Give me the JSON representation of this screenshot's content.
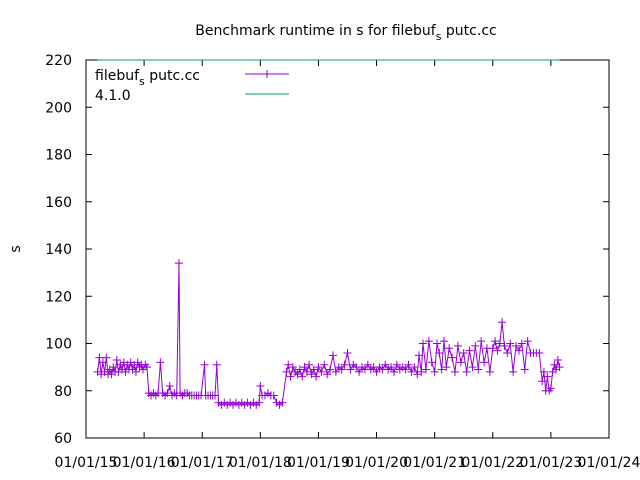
{
  "chart_data": {
    "type": "line",
    "title": {
      "prefix": "Benchmark runtime in s for filebuf",
      "sub": "s",
      "suffix": " putc.cc"
    },
    "xlabel": "",
    "ylabel": "s",
    "ylim": [
      60,
      220
    ],
    "xlim": [
      2015,
      2024
    ],
    "yticks": [
      "60",
      "80",
      "100",
      "120",
      "140",
      "160",
      "180",
      "200",
      "220"
    ],
    "xticks": [
      "01/01/15",
      "01/01/16",
      "01/01/17",
      "01/01/18",
      "01/01/19",
      "01/01/20",
      "01/01/21",
      "01/01/22",
      "01/01/23",
      "01/01/24"
    ],
    "legend_position": "top-left",
    "series": [
      {
        "name": {
          "prefix": "filebuf",
          "sub": "s",
          "suffix": " putc.cc"
        },
        "color": "#9400d3",
        "marker": "plus",
        "points": [
          [
            2015.2,
            88
          ],
          [
            2015.23,
            94
          ],
          [
            2015.26,
            87
          ],
          [
            2015.29,
            92
          ],
          [
            2015.32,
            88
          ],
          [
            2015.35,
            94
          ],
          [
            2015.38,
            87
          ],
          [
            2015.41,
            89
          ],
          [
            2015.44,
            87
          ],
          [
            2015.47,
            90
          ],
          [
            2015.5,
            88
          ],
          [
            2015.53,
            93
          ],
          [
            2015.56,
            88
          ],
          [
            2015.59,
            91
          ],
          [
            2015.62,
            89
          ],
          [
            2015.65,
            92
          ],
          [
            2015.68,
            88
          ],
          [
            2015.71,
            91
          ],
          [
            2015.74,
            89
          ],
          [
            2015.77,
            92
          ],
          [
            2015.8,
            89
          ],
          [
            2015.83,
            91
          ],
          [
            2015.86,
            88
          ],
          [
            2015.89,
            92
          ],
          [
            2015.92,
            90
          ],
          [
            2015.95,
            91
          ],
          [
            2015.98,
            89
          ],
          [
            2016.02,
            91
          ],
          [
            2016.05,
            90
          ],
          [
            2016.08,
            79
          ],
          [
            2016.12,
            78
          ],
          [
            2016.16,
            79
          ],
          [
            2016.2,
            78
          ],
          [
            2016.24,
            79
          ],
          [
            2016.28,
            92
          ],
          [
            2016.32,
            79
          ],
          [
            2016.36,
            78
          ],
          [
            2016.4,
            79
          ],
          [
            2016.44,
            82
          ],
          [
            2016.48,
            78
          ],
          [
            2016.52,
            79
          ],
          [
            2016.56,
            78
          ],
          [
            2016.6,
            134
          ],
          [
            2016.62,
            79
          ],
          [
            2016.66,
            78
          ],
          [
            2016.7,
            79
          ],
          [
            2016.74,
            79
          ],
          [
            2016.78,
            78
          ],
          [
            2016.82,
            78
          ],
          [
            2016.86,
            78
          ],
          [
            2016.9,
            78
          ],
          [
            2016.94,
            78
          ],
          [
            2016.98,
            78
          ],
          [
            2017.04,
            91
          ],
          [
            2017.06,
            78
          ],
          [
            2017.1,
            78
          ],
          [
            2017.14,
            78
          ],
          [
            2017.18,
            78
          ],
          [
            2017.22,
            78
          ],
          [
            2017.25,
            91
          ],
          [
            2017.28,
            75
          ],
          [
            2017.33,
            74
          ],
          [
            2017.38,
            75
          ],
          [
            2017.43,
            74
          ],
          [
            2017.48,
            75
          ],
          [
            2017.53,
            74
          ],
          [
            2017.58,
            75
          ],
          [
            2017.63,
            74
          ],
          [
            2017.68,
            75
          ],
          [
            2017.73,
            74
          ],
          [
            2017.78,
            75
          ],
          [
            2017.83,
            74
          ],
          [
            2017.88,
            75
          ],
          [
            2017.93,
            74
          ],
          [
            2017.98,
            75
          ],
          [
            2018.0,
            82
          ],
          [
            2018.03,
            78
          ],
          [
            2018.08,
            78
          ],
          [
            2018.13,
            79
          ],
          [
            2018.18,
            78
          ],
          [
            2018.23,
            78
          ],
          [
            2018.28,
            75
          ],
          [
            2018.33,
            74
          ],
          [
            2018.38,
            75
          ],
          [
            2018.45,
            88
          ],
          [
            2018.48,
            91
          ],
          [
            2018.52,
            86
          ],
          [
            2018.56,
            90
          ],
          [
            2018.6,
            88
          ],
          [
            2018.64,
            87
          ],
          [
            2018.68,
            89
          ],
          [
            2018.72,
            86
          ],
          [
            2018.76,
            90
          ],
          [
            2018.8,
            88
          ],
          [
            2018.84,
            91
          ],
          [
            2018.88,
            87
          ],
          [
            2018.92,
            89
          ],
          [
            2018.96,
            86
          ],
          [
            2019.0,
            90
          ],
          [
            2019.05,
            88
          ],
          [
            2019.1,
            91
          ],
          [
            2019.15,
            87
          ],
          [
            2019.2,
            89
          ],
          [
            2019.25,
            95
          ],
          [
            2019.3,
            88
          ],
          [
            2019.35,
            90
          ],
          [
            2019.4,
            89
          ],
          [
            2019.45,
            91
          ],
          [
            2019.5,
            96
          ],
          [
            2019.55,
            89
          ],
          [
            2019.6,
            91
          ],
          [
            2019.65,
            90
          ],
          [
            2019.7,
            88
          ],
          [
            2019.75,
            90
          ],
          [
            2019.8,
            89
          ],
          [
            2019.85,
            91
          ],
          [
            2019.9,
            89
          ],
          [
            2019.95,
            90
          ],
          [
            2020.0,
            88
          ],
          [
            2020.05,
            90
          ],
          [
            2020.1,
            89
          ],
          [
            2020.15,
            91
          ],
          [
            2020.2,
            89
          ],
          [
            2020.25,
            90
          ],
          [
            2020.3,
            88
          ],
          [
            2020.35,
            91
          ],
          [
            2020.4,
            89
          ],
          [
            2020.45,
            90
          ],
          [
            2020.5,
            89
          ],
          [
            2020.55,
            91
          ],
          [
            2020.6,
            88
          ],
          [
            2020.65,
            90
          ],
          [
            2020.7,
            87
          ],
          [
            2020.73,
            95
          ],
          [
            2020.77,
            88
          ],
          [
            2020.8,
            100
          ],
          [
            2020.85,
            89
          ],
          [
            2020.9,
            101
          ],
          [
            2020.95,
            92
          ],
          [
            2021.0,
            88
          ],
          [
            2021.04,
            100
          ],
          [
            2021.08,
            96
          ],
          [
            2021.12,
            89
          ],
          [
            2021.16,
            101
          ],
          [
            2021.2,
            90
          ],
          [
            2021.25,
            98
          ],
          [
            2021.3,
            94
          ],
          [
            2021.35,
            88
          ],
          [
            2021.4,
            99
          ],
          [
            2021.45,
            92
          ],
          [
            2021.5,
            96
          ],
          [
            2021.55,
            88
          ],
          [
            2021.6,
            97
          ],
          [
            2021.65,
            90
          ],
          [
            2021.7,
            99
          ],
          [
            2021.75,
            89
          ],
          [
            2021.8,
            101
          ],
          [
            2021.85,
            92
          ],
          [
            2021.9,
            98
          ],
          [
            2021.95,
            88
          ],
          [
            2022.0,
            98
          ],
          [
            2022.04,
            101
          ],
          [
            2022.08,
            97
          ],
          [
            2022.12,
            100
          ],
          [
            2022.16,
            109
          ],
          [
            2022.2,
            99
          ],
          [
            2022.25,
            96
          ],
          [
            2022.3,
            100
          ],
          [
            2022.35,
            88
          ],
          [
            2022.4,
            99
          ],
          [
            2022.45,
            97
          ],
          [
            2022.5,
            100
          ],
          [
            2022.55,
            89
          ],
          [
            2022.6,
            101
          ],
          [
            2022.65,
            96
          ],
          [
            2022.7,
            96
          ],
          [
            2022.75,
            96
          ],
          [
            2022.8,
            96
          ],
          [
            2022.85,
            84
          ],
          [
            2022.88,
            88
          ],
          [
            2022.91,
            80
          ],
          [
            2022.94,
            86
          ],
          [
            2022.97,
            80
          ],
          [
            2023.0,
            81
          ],
          [
            2023.03,
            88
          ],
          [
            2023.06,
            91
          ],
          [
            2023.09,
            89
          ],
          [
            2023.12,
            93
          ],
          [
            2023.15,
            90
          ]
        ]
      },
      {
        "name": {
          "prefix": "4.1.0",
          "sub": "",
          "suffix": ""
        },
        "color": "#009e73",
        "marker": "none",
        "points": [
          [
            2015.2,
            220
          ],
          [
            2023.15,
            220
          ]
        ]
      }
    ]
  }
}
